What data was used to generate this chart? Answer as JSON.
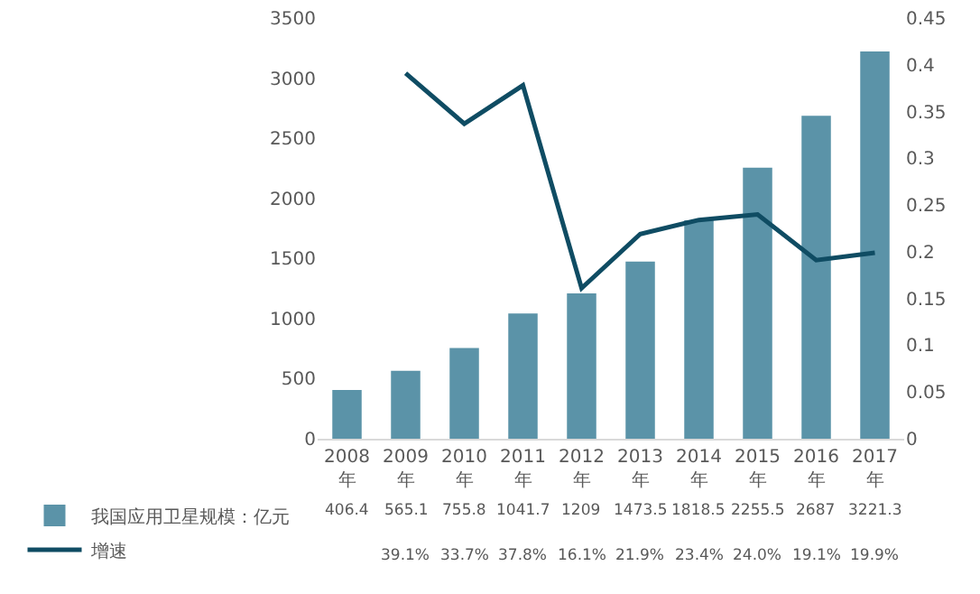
{
  "chart_data": {
    "type": "bar",
    "categories": [
      "2008年",
      "2009年",
      "2010年",
      "2011年",
      "2012年",
      "2013年",
      "2014年",
      "2015年",
      "2016年",
      "2017年"
    ],
    "series": [
      {
        "name": "我国应用卫星规模：亿元",
        "color": "#5b93a8",
        "values": [
          406.4,
          565.1,
          755.8,
          1041.7,
          1209,
          1473.5,
          1818.5,
          2255.5,
          2687,
          3221.3
        ],
        "value_labels": [
          "406.4",
          "565.1",
          "755.8",
          "1041.7",
          "1209",
          "1473.5",
          "1818.5",
          "2255.5",
          "2687",
          "3221.3"
        ]
      },
      {
        "name": "增速",
        "type": "line",
        "axis": "y2",
        "color": "#0f4c63",
        "values": [
          null,
          0.391,
          0.337,
          0.378,
          0.161,
          0.219,
          0.234,
          0.24,
          0.191,
          0.199
        ],
        "value_labels": [
          null,
          "39.1%",
          "33.7%",
          "37.8%",
          "16.1%",
          "21.9%",
          "23.4%",
          "24.0%",
          "19.1%",
          "19.9%"
        ]
      }
    ],
    "ylim": [
      0,
      3500
    ],
    "yticks": [
      0,
      500,
      1000,
      1500,
      2000,
      2500,
      3000,
      3500
    ],
    "y2lim": [
      0,
      0.45
    ],
    "y2ticks": [
      0,
      0.05,
      0.1,
      0.15,
      0.2,
      0.25,
      0.3,
      0.35,
      0.4,
      0.45
    ],
    "grid": false,
    "legend": "bottom left",
    "marker": "none",
    "line_style": "solid"
  }
}
